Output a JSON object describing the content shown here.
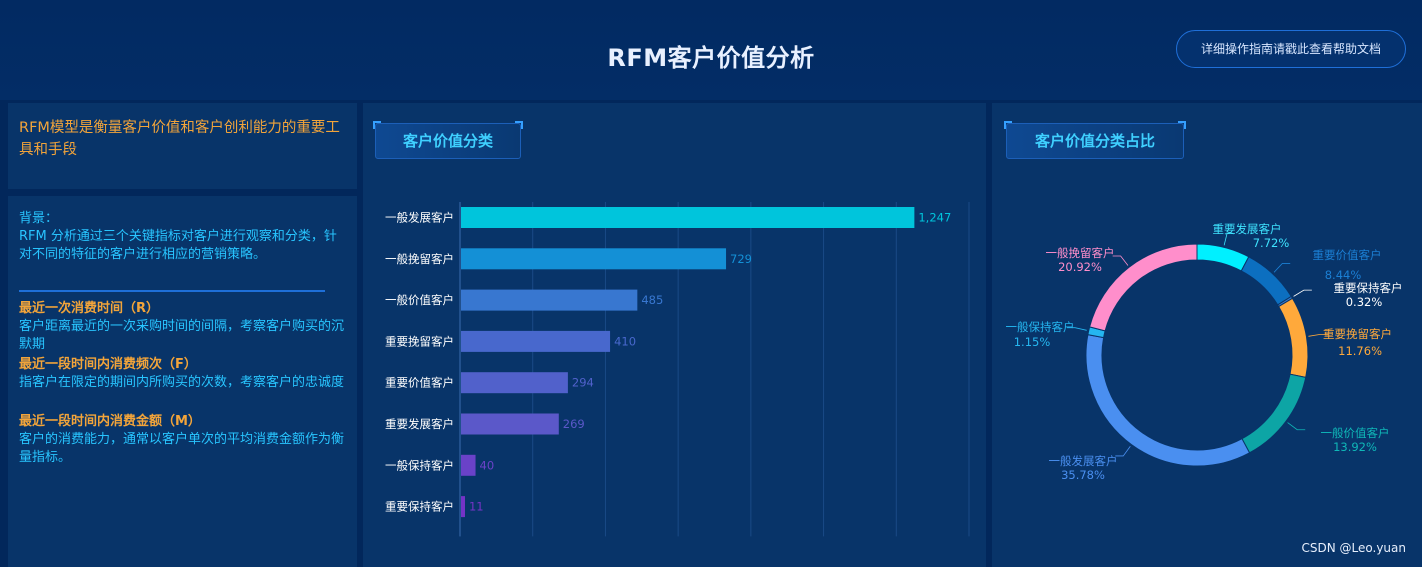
{
  "header": {
    "title": "RFM客户价值分析",
    "help_label": "详细操作指南请戳此查看帮助文档"
  },
  "intro": {
    "text": "RFM模型是衡量客户价值和客户创利能力的重要工具和手段"
  },
  "description": {
    "background_label": "背景：",
    "background_text": "RFM 分析通过三个关键指标对客户进行观察和分类，针对不同的特征的客户进行相应的营销策略。",
    "metrics": [
      {
        "title": "最近一次消费时间（R）",
        "desc": "客户距离最近的一次采购时间的间隔，考察客户购买的沉默期"
      },
      {
        "title": "最近一段时间内消费频次（F）",
        "desc": "指客户在限定的期间内所购买的次数，考察客户的忠诚度"
      },
      {
        "title": "最近一段时间内消费金额（M）",
        "desc": "客户的消费能力，通常以客户单次的平均消费金额作为衡量指标。"
      }
    ]
  },
  "bar_section": {
    "title": "客户价值分类"
  },
  "pie_section": {
    "title": "客户价值分类占比"
  },
  "watermark": "CSDN @Leo.yuan",
  "chart_data": [
    {
      "type": "bar",
      "orientation": "horizontal",
      "title": "客户价值分类",
      "categories": [
        "一般发展客户",
        "一般挽留客户",
        "一般价值客户",
        "重要挽留客户",
        "重要价值客户",
        "重要发展客户",
        "一般保持客户",
        "重要保持客户"
      ],
      "values": [
        1247,
        729,
        485,
        410,
        294,
        269,
        40,
        11
      ],
      "value_labels": [
        "1,247",
        "729",
        "485",
        "410",
        "294",
        "269",
        "40",
        "11"
      ],
      "xlim": [
        0,
        1400
      ],
      "grid": true,
      "colors": [
        "#00c5dc",
        "#1490d6",
        "#3877d0",
        "#4868cd",
        "#5161cb",
        "#5b58c9",
        "#6a42c8",
        "#7433c6"
      ]
    },
    {
      "type": "pie",
      "donut": true,
      "title": "客户价值分类占比",
      "slices": [
        {
          "label": "重要发展客户",
          "value": 7.72,
          "pct_label": "7.72%",
          "color": "#00f0ff"
        },
        {
          "label": "重要价值客户",
          "value": 8.44,
          "pct_label": "8.44%",
          "color": "#0c6fc0"
        },
        {
          "label": "重要保持客户",
          "value": 0.32,
          "pct_label": "0.32%",
          "color": "#3a7fd0"
        },
        {
          "label": "重要挽留客户",
          "value": 11.76,
          "pct_label": "11.76%",
          "color": "#ffa93b"
        },
        {
          "label": "一般价值客户",
          "value": 13.92,
          "pct_label": "13.92%",
          "color": "#0da5a5"
        },
        {
          "label": "一般发展客户",
          "value": 35.78,
          "pct_label": "35.78%",
          "color": "#4a8ff0"
        },
        {
          "label": "一般保持客户",
          "value": 1.15,
          "pct_label": "1.15%",
          "color": "#25b6f0"
        },
        {
          "label": "一般挽留客户",
          "value": 20.92,
          "pct_label": "20.92%",
          "color": "#ff8ecb"
        }
      ],
      "label_colors": [
        "#3fe4ff",
        "#1b7fd4",
        "#ffffff",
        "#ffa93b",
        "#0fb8b8",
        "#4a8ff0",
        "#25b6f0",
        "#ff8ecb"
      ]
    }
  ]
}
